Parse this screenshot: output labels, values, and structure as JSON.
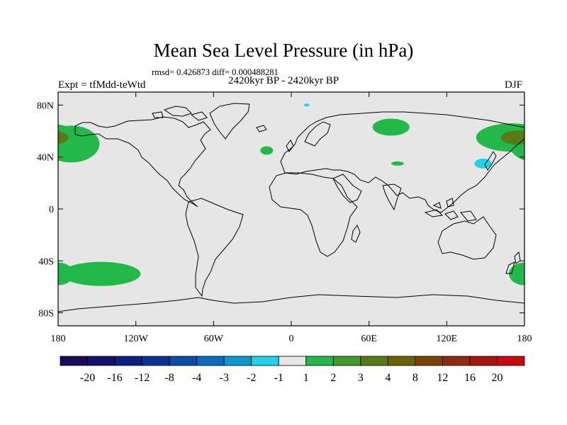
{
  "plot": {
    "title": "Mean Sea Level Pressure (in hPa)",
    "stats": "rmsd= 0.426873 diff= 0.000488281",
    "experiment": "Expt = tfMdd-teWtd",
    "period": "2420kyr BP - 2420kyr BP",
    "season": "DJF",
    "background_color": "#e6e6e6",
    "coastline_color": "#000000"
  },
  "axes": {
    "lat_ticks": [
      "80N",
      "40N",
      "0",
      "40S",
      "80S"
    ],
    "lon_ticks": [
      "180",
      "120W",
      "60W",
      "0",
      "60E",
      "120E",
      "180"
    ],
    "lat_values": [
      80,
      40,
      0,
      -40,
      -80
    ],
    "lon_values": [
      -180,
      -120,
      -60,
      0,
      60,
      120,
      180
    ],
    "lat_range": [
      -90,
      90
    ],
    "lon_range": [
      -180,
      180
    ]
  },
  "colorbar": {
    "labels": [
      "-20",
      "-16",
      "-12",
      "-8",
      "-4",
      "-3",
      "-2",
      "-1",
      "1",
      "2",
      "3",
      "4",
      "8",
      "12",
      "16",
      "20"
    ],
    "colors": [
      "#1a0a5a",
      "#13136e",
      "#0d1f82",
      "#0a3296",
      "#0a4ca8",
      "#0b6cbd",
      "#0f97d2",
      "#1fd2e6",
      "#e6e6e6",
      "#22b94a",
      "#3f9a2b",
      "#5a7a16",
      "#6b6206",
      "#7d4206",
      "#8f2a0c",
      "#a8140e",
      "#c80c0c"
    ]
  },
  "anomalies": [
    {
      "name": "north-pacific-east",
      "value_class": "1 to 2",
      "color": "#22b94a",
      "lon": -170,
      "lat": 50
    },
    {
      "name": "north-pacific-west",
      "value_class": "1 to 2",
      "color": "#22b94a",
      "lon": 170,
      "lat": 55
    },
    {
      "name": "north-pacific-core",
      "value_class": "3 to 4",
      "color": "#5a7a16",
      "lon": 175,
      "lat": 55
    },
    {
      "name": "siberia",
      "value_class": "1 to 2",
      "color": "#22b94a",
      "lon": 77,
      "lat": 63
    },
    {
      "name": "north-atlantic",
      "value_class": "1 to 2",
      "color": "#22b94a",
      "lon": -19,
      "lat": 45
    },
    {
      "name": "central-asia",
      "value_class": "1 to 2",
      "color": "#22b94a",
      "lon": 82,
      "lat": 35
    },
    {
      "name": "south-pacific",
      "value_class": "1 to 2",
      "color": "#22b94a",
      "lon": -147,
      "lat": -50
    },
    {
      "name": "south-west-pacific",
      "value_class": "1 to 2",
      "color": "#22b94a",
      "lon": 180,
      "lat": -50
    },
    {
      "name": "north-west-pacific-low",
      "value_class": "-2 to -1",
      "color": "#1fd2e6",
      "lon": 148,
      "lat": 35
    },
    {
      "name": "arctic-low",
      "value_class": "-2 to -1",
      "color": "#1fd2e6",
      "lon": 12,
      "lat": 80
    }
  ]
}
